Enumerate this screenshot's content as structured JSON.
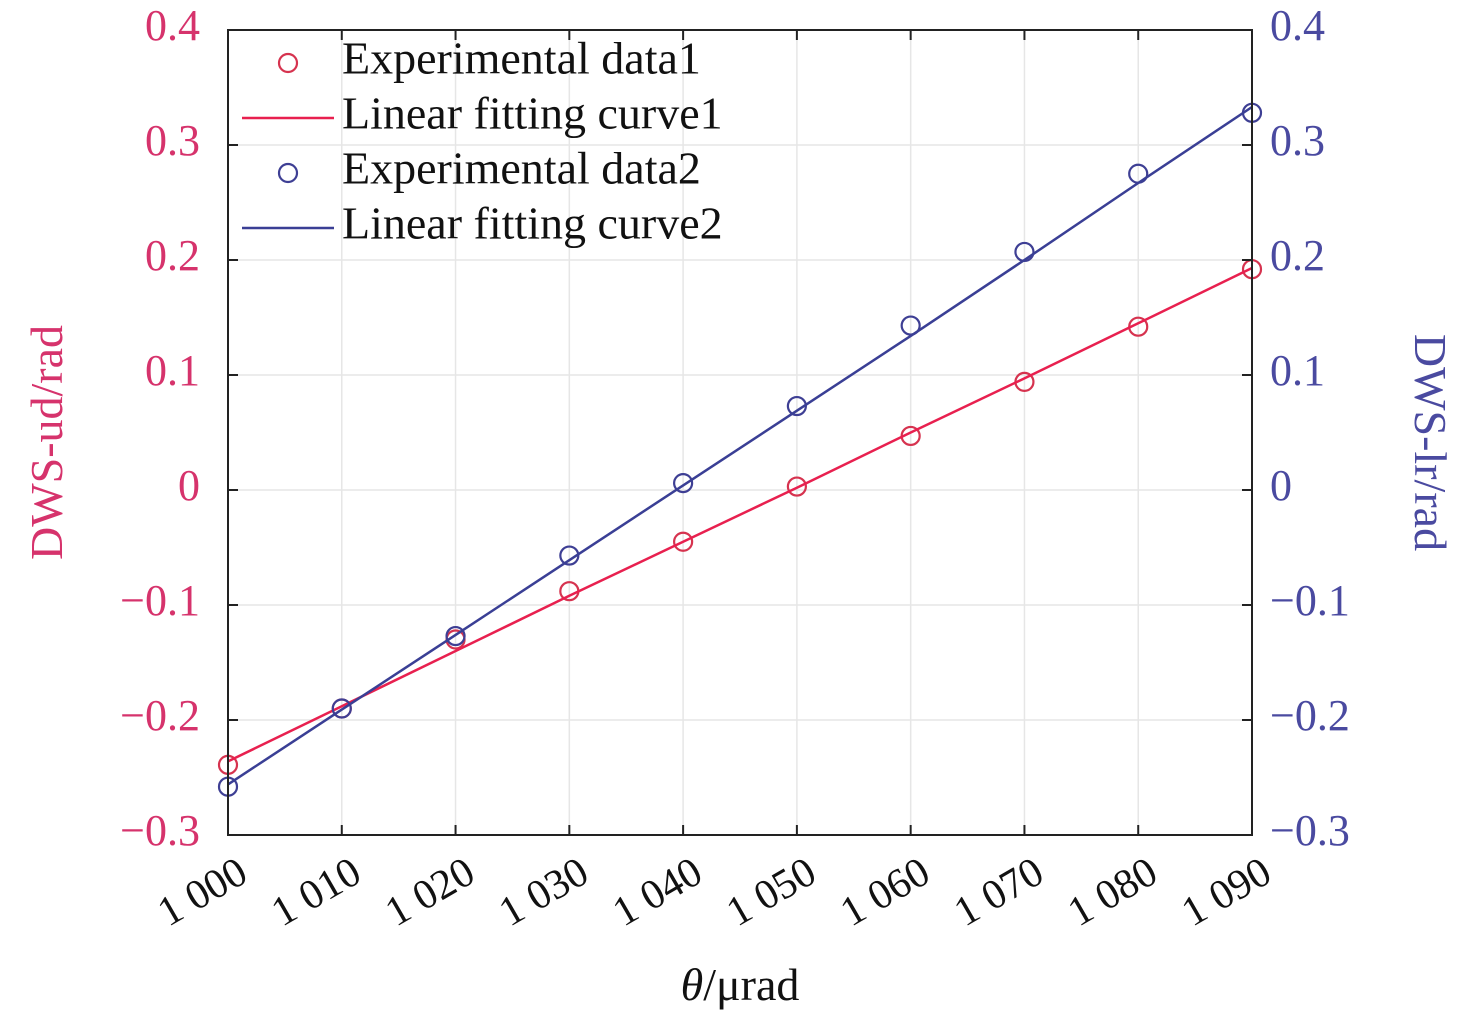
{
  "chart_data": {
    "type": "line",
    "xlabel_symbol": "θ",
    "xlabel_unit": "/μrad",
    "ylabel_left": "DWS-ud/rad",
    "ylabel_right": "DWS-lr/rad",
    "xlim": [
      1000,
      1090
    ],
    "ylim_left": [
      -0.3,
      0.4
    ],
    "ylim_right": [
      -0.3,
      0.4
    ],
    "x_ticks": [
      1000,
      1010,
      1020,
      1030,
      1040,
      1050,
      1060,
      1070,
      1080,
      1090
    ],
    "x_tick_labels": [
      "1 000",
      "1 010",
      "1 020",
      "1 030",
      "1 040",
      "1 050",
      "1 060",
      "1 070",
      "1 080",
      "1 090"
    ],
    "y_ticks": [
      -0.3,
      -0.2,
      -0.1,
      0,
      0.1,
      0.2,
      0.3,
      0.4
    ],
    "y_tick_labels": [
      "−0.3",
      "−0.2",
      "−0.1",
      "0",
      "0.1",
      "0.2",
      "0.3",
      "0.4"
    ],
    "grid": true,
    "legend_position": "top-left",
    "x": [
      1000,
      1010,
      1020,
      1030,
      1040,
      1050,
      1060,
      1070,
      1080,
      1090
    ],
    "series": [
      {
        "name": "Experimental data1",
        "kind": "markers",
        "axis": "left",
        "color": "#d6334f",
        "values": [
          -0.239,
          -0.19,
          -0.13,
          -0.088,
          -0.045,
          0.003,
          0.047,
          0.094,
          0.142,
          0.192
        ]
      },
      {
        "name": "Linear fitting curve1",
        "kind": "line",
        "axis": "left",
        "color": "#e8204f",
        "values": [
          -0.236,
          -0.188,
          -0.14,
          -0.092,
          -0.045,
          0.002,
          0.05,
          0.097,
          0.145,
          0.193
        ]
      },
      {
        "name": "Experimental data2",
        "kind": "markers",
        "axis": "right",
        "color": "#3e3f94",
        "values": [
          -0.258,
          -0.19,
          -0.127,
          -0.057,
          0.006,
          0.073,
          0.143,
          0.207,
          0.275,
          0.328
        ]
      },
      {
        "name": "Linear fitting curve2",
        "kind": "line",
        "axis": "right",
        "color": "#3a3f95",
        "values": [
          -0.256,
          -0.191,
          -0.126,
          -0.061,
          0.004,
          0.069,
          0.134,
          0.2,
          0.267,
          0.333
        ]
      }
    ],
    "colors": {
      "left_axis": "#d6336c",
      "right_axis": "#4a4aa0"
    }
  }
}
